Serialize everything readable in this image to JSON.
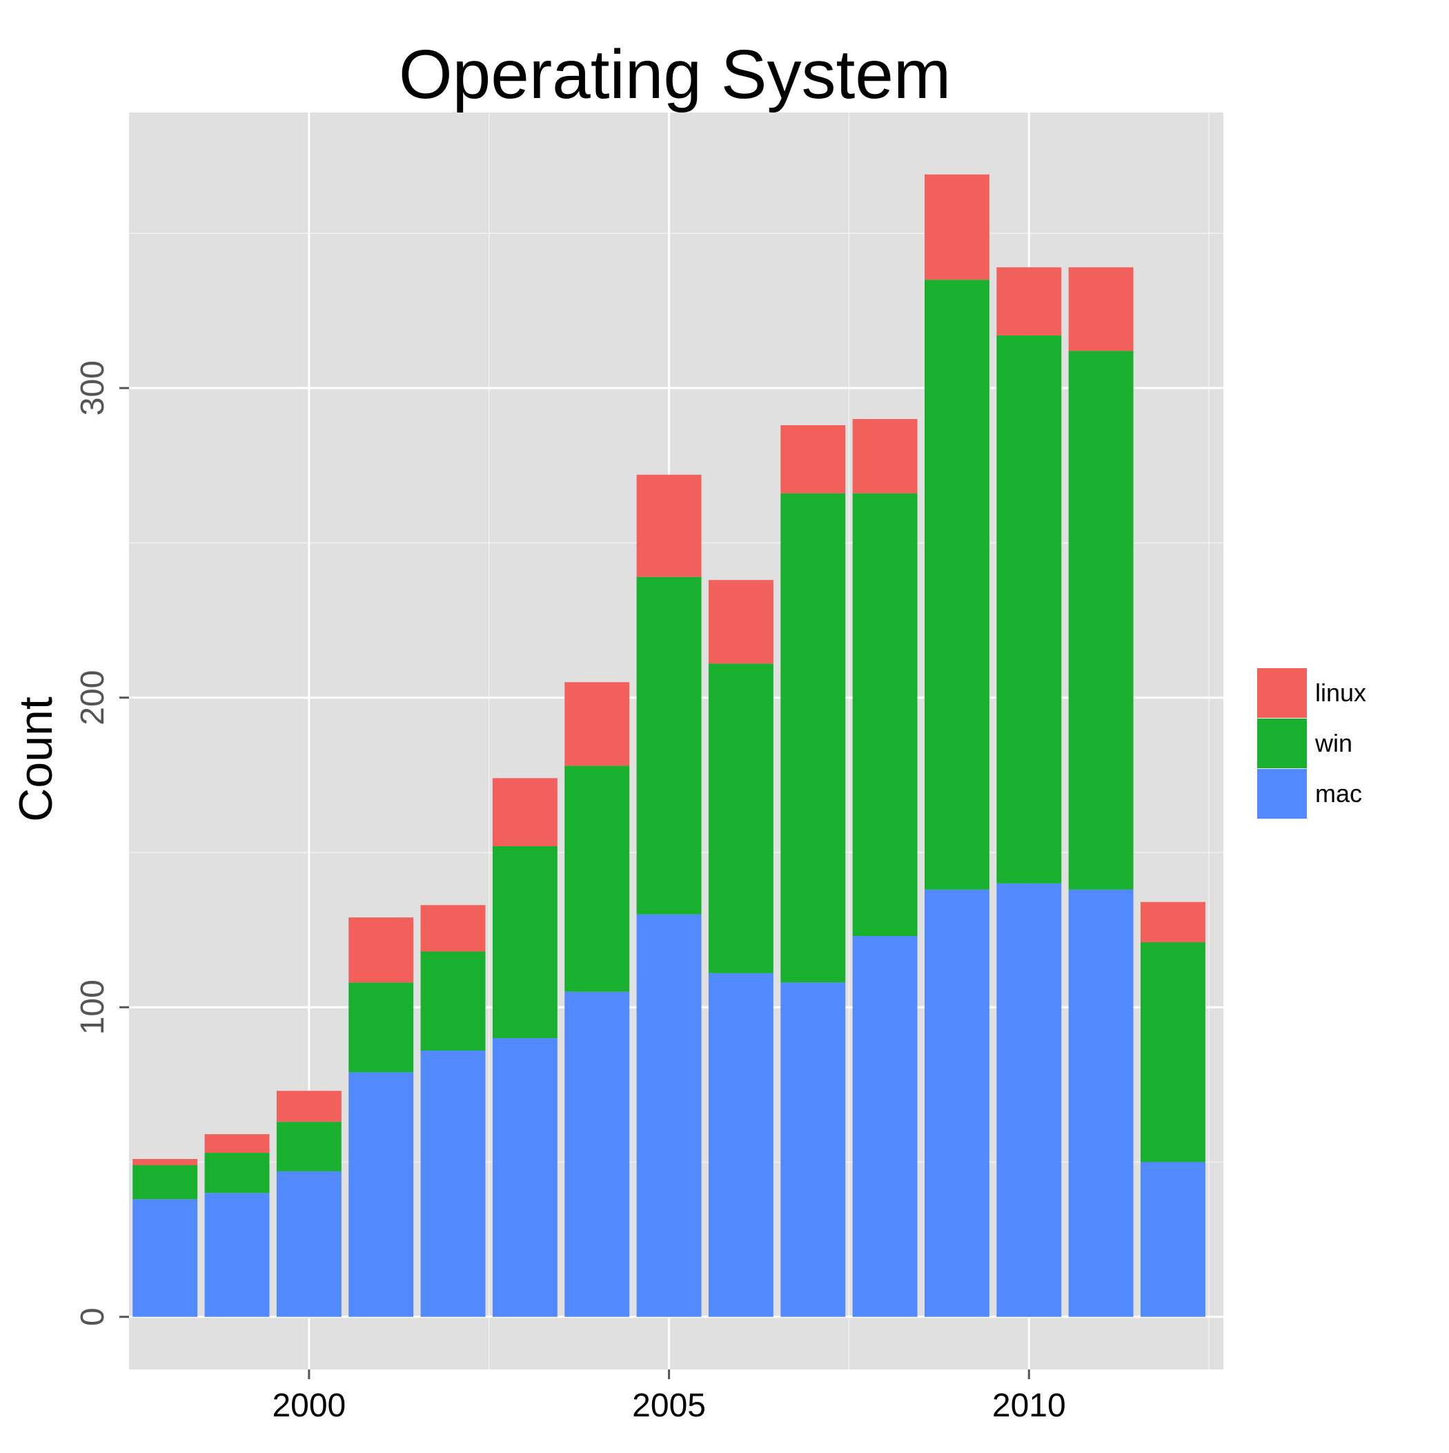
{
  "chart_data": {
    "type": "bar",
    "stacked": true,
    "title": "Operating System",
    "xlabel": "",
    "ylabel": "Count",
    "x": [
      1998,
      1999,
      2000,
      2001,
      2002,
      2003,
      2004,
      2005,
      2006,
      2007,
      2008,
      2009,
      2010,
      2011,
      2012
    ],
    "xticks": [
      2000,
      2005,
      2010
    ],
    "xlim": [
      1997.5,
      2012.7
    ],
    "yticks": [
      0,
      100,
      200,
      300
    ],
    "ylim": [
      -17,
      389
    ],
    "grid": true,
    "legend_position": "right",
    "series": [
      {
        "name": "mac",
        "color": "#528afd",
        "values": [
          38,
          40,
          47,
          79,
          86,
          90,
          105,
          130,
          111,
          108,
          123,
          138,
          140,
          138,
          50
        ]
      },
      {
        "name": "win",
        "color": "#19b02f",
        "values": [
          11,
          13,
          16,
          29,
          32,
          62,
          73,
          109,
          100,
          158,
          143,
          197,
          177,
          174,
          71
        ]
      },
      {
        "name": "linux",
        "color": "#f2605c",
        "values": [
          2,
          6,
          10,
          21,
          15,
          22,
          27,
          33,
          27,
          22,
          24,
          34,
          22,
          27,
          13
        ]
      }
    ],
    "legend_order": [
      "linux",
      "win",
      "mac"
    ]
  }
}
